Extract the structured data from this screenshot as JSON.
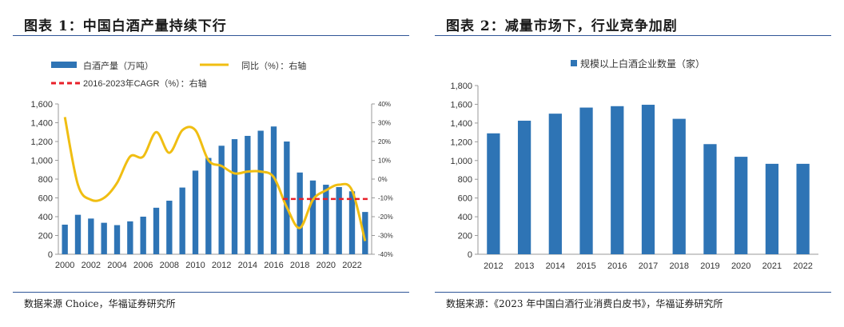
{
  "panels": [
    {
      "title": "图表 1：中国白酒产量持续下行",
      "source": "数据来源 Choice，华福证券研究所"
    },
    {
      "title": "图表 2：减量市场下，行业竞争加剧",
      "source": "数据来源：《2023 年中国白酒行业消费白皮书》，华福证券研究所"
    }
  ],
  "colors": {
    "bar": "#2e74b5",
    "line": "#f0be12",
    "cagr": "#e8202a",
    "rule": "#2f5597",
    "axis": "#999999"
  },
  "chart_data": [
    {
      "type": "bar",
      "categories": [
        "2000",
        "2001",
        "2002",
        "2003",
        "2004",
        "2005",
        "2006",
        "2007",
        "2008",
        "2009",
        "2010",
        "2011",
        "2012",
        "2013",
        "2014",
        "2015",
        "2016",
        "2017",
        "2018",
        "2019",
        "2020",
        "2021",
        "2022",
        "2023"
      ],
      "x_tick_labels": [
        "2000",
        "2002",
        "2004",
        "2006",
        "2008",
        "2010",
        "2012",
        "2014",
        "2016",
        "2018",
        "2020",
        "2022"
      ],
      "series": [
        {
          "name": "白酒产量（万吨）",
          "type": "bar",
          "axis": "left",
          "values": [
            315,
            420,
            380,
            335,
            310,
            350,
            400,
            495,
            570,
            710,
            890,
            1025,
            1155,
            1225,
            1260,
            1315,
            1360,
            1200,
            870,
            785,
            740,
            715,
            670,
            450
          ]
        },
        {
          "name": "同比（%）：右轴",
          "type": "line",
          "axis": "right",
          "values": [
            33,
            -3,
            -11,
            -10,
            -2,
            12,
            12,
            25,
            14,
            26,
            26,
            10,
            7,
            3,
            4,
            4,
            1,
            -15,
            -26,
            -11,
            -6,
            -3,
            -6,
            -33
          ]
        },
        {
          "name": "2016-2023年CAGR（%）：右轴",
          "type": "line",
          "axis": "right",
          "dashed": true,
          "x_range": [
            "2017",
            "2023"
          ],
          "value": -10.6
        }
      ],
      "y_left": {
        "min": 0,
        "max": 1600,
        "ticks": [
          "0",
          "200",
          "400",
          "600",
          "800",
          "1,000",
          "1,200",
          "1,400",
          "1,600"
        ]
      },
      "y_right": {
        "min": -40,
        "max": 40,
        "ticks": [
          "-40%",
          "-30%",
          "-20%",
          "-10%",
          "0%",
          "10%",
          "20%",
          "30%",
          "40%"
        ]
      },
      "grid": false,
      "legend_position": "top-left"
    },
    {
      "type": "bar",
      "categories": [
        "2012",
        "2013",
        "2014",
        "2015",
        "2016",
        "2017",
        "2018",
        "2019",
        "2020",
        "2021",
        "2022"
      ],
      "series": [
        {
          "name": "规模以上白酒企业数量（家）",
          "values": [
            1290,
            1425,
            1500,
            1565,
            1580,
            1595,
            1445,
            1175,
            1040,
            965,
            965
          ]
        }
      ],
      "y": {
        "min": 0,
        "max": 1800,
        "ticks": [
          "0",
          "200",
          "400",
          "600",
          "800",
          "1,000",
          "1,200",
          "1,400",
          "1,600",
          "1,800"
        ]
      },
      "grid": false,
      "legend_position": "top-center"
    }
  ]
}
